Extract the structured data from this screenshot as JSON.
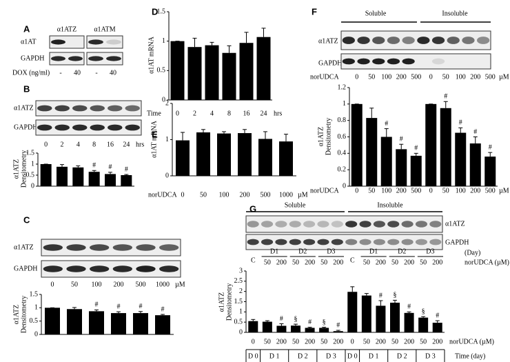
{
  "chart_data": [
    {
      "type": "bar",
      "y_label": [
        "α1ATZ",
        "Densitometry"
      ],
      "categories": [
        "0",
        "2",
        "4",
        "8",
        "16",
        "24"
      ],
      "x_unit": "hrs",
      "values": [
        1.0,
        0.88,
        0.85,
        0.65,
        0.55,
        0.5
      ],
      "errors": [
        0,
        0.1,
        0.07,
        0.06,
        0.08,
        0.03
      ],
      "annotations": [
        null,
        null,
        null,
        "#",
        "#",
        "#"
      ],
      "ylim": [
        0,
        1.5
      ],
      "yticks": [
        0,
        0.5,
        1,
        1.5
      ],
      "color": "#000000"
    },
    {
      "type": "bar",
      "y_label": [
        "α1ATZ",
        "Densitometry"
      ],
      "categories": [
        "0",
        "50",
        "100",
        "200",
        "500",
        "1000"
      ],
      "x_unit": "µM",
      "values": [
        1.0,
        0.95,
        0.87,
        0.8,
        0.8,
        0.72
      ],
      "errors": [
        0,
        0.06,
        0.05,
        0.05,
        0.06,
        0.03
      ],
      "annotations": [
        null,
        null,
        "#",
        "#",
        "#",
        "#"
      ],
      "ylim": [
        0,
        1.5
      ],
      "yticks": [
        0,
        0.5,
        1,
        1.5
      ],
      "color": "#000000"
    },
    {
      "type": "bar",
      "y_label": [
        "α1AT mRNA"
      ],
      "x_label": "Time",
      "categories": [
        "0",
        "2",
        "4",
        "8",
        "16",
        "24"
      ],
      "x_unit": "hrs",
      "values": [
        1.0,
        0.9,
        0.93,
        0.8,
        0.97,
        1.07
      ],
      "errors": [
        0,
        0.15,
        0.05,
        0.12,
        0.18,
        0.15
      ],
      "ylim": [
        0,
        1.5
      ],
      "yticks": [
        0,
        0.5,
        1,
        1.5
      ],
      "color": "#000000"
    },
    {
      "type": "bar",
      "y_label": [
        "α1AT mRNA"
      ],
      "x_label": "norUDCA",
      "categories": [
        "0",
        "50",
        "100",
        "200",
        "500",
        "1000"
      ],
      "x_unit": "µM",
      "values": [
        0.98,
        1.2,
        1.17,
        1.18,
        1.02,
        0.95
      ],
      "errors": [
        0.22,
        0.08,
        0.05,
        0.1,
        0.2,
        0.2
      ],
      "ylim": [
        0,
        2
      ],
      "yticks": [
        0,
        1,
        2
      ],
      "color": "#000000"
    },
    {
      "type": "bar",
      "y_label": [
        "α1ATZ",
        "Densitometry"
      ],
      "x_label": "norUDCA",
      "categories": [
        "0",
        "50",
        "100",
        "200",
        "500",
        "0",
        "50",
        "100",
        "200",
        "500"
      ],
      "x_unit": "µM",
      "values": [
        1.0,
        0.83,
        0.6,
        0.45,
        0.37,
        1.0,
        0.95,
        0.65,
        0.52,
        0.36
      ],
      "errors": [
        0,
        0.12,
        0.1,
        0.06,
        0.03,
        0,
        0.08,
        0.06,
        0.08,
        0.05
      ],
      "annotations": [
        null,
        null,
        "#",
        "#",
        "#",
        null,
        "#",
        "#",
        "#",
        "#"
      ],
      "ylim": [
        0,
        1.2
      ],
      "yticks": [
        0,
        0.2,
        0.4,
        0.6,
        0.8,
        1,
        1.2
      ],
      "color": "#000000"
    },
    {
      "type": "bar",
      "y_label": [
        "α1ATZ",
        "Densitometry"
      ],
      "x_label": "norUDCA (µM)",
      "categories": [
        "0",
        "50",
        "200",
        "50",
        "200",
        "50",
        "200",
        "0",
        "50",
        "200",
        "50",
        "200",
        "50",
        "200"
      ],
      "days": [
        "D 0",
        "D 1",
        "D 2",
        "D 3",
        "D 0",
        "D 1",
        "D 2",
        "D 3"
      ],
      "days_label": "Time (day)",
      "values": [
        0.55,
        0.52,
        0.32,
        0.33,
        0.22,
        0.22,
        0.06,
        1.98,
        1.8,
        1.3,
        1.45,
        0.95,
        0.72,
        0.47
      ],
      "errors": [
        0.08,
        0.05,
        0.1,
        0.07,
        0.03,
        0.03,
        0.04,
        0.25,
        0.1,
        0.25,
        0.12,
        0.05,
        0.05,
        0.1
      ],
      "annotations": [
        null,
        null,
        "#",
        "§",
        "#",
        "§",
        "#",
        null,
        null,
        "#",
        "§",
        "#",
        "§",
        "#"
      ],
      "ylim": [
        0,
        3
      ],
      "yticks": [
        0,
        0.5,
        1,
        1.5,
        2,
        2.5,
        3
      ],
      "color": "#000000"
    }
  ],
  "blots": {
    "A": {
      "letter": "A",
      "columns": [
        "α1ATZ",
        "α1ATM"
      ],
      "rows": [
        "α1AT",
        "GAPDH"
      ],
      "dox_label": "DOX (ng/ml)",
      "dox": [
        "-",
        "40",
        "-",
        "40"
      ]
    },
    "B": {
      "letter": "B",
      "rows": [
        "α1ATZ",
        "GAPDH"
      ]
    },
    "C": {
      "letter": "C",
      "rows": [
        "α1ATZ",
        "GAPDH"
      ]
    },
    "D": {
      "letter": "D"
    },
    "E": {
      "letter": "E"
    },
    "F": {
      "letter": "F",
      "groups": [
        "Soluble",
        "Insoluble"
      ],
      "rows": [
        "α1ATZ",
        "GAPDH"
      ]
    },
    "G": {
      "letter": "G",
      "groups": [
        "Soluble",
        "Insoluble"
      ],
      "rows": [
        "α1ATZ",
        "GAPDH"
      ],
      "day_label": "(Day)",
      "top_groups": [
        "C",
        "D1",
        "D2",
        "D3"
      ],
      "top_doses": [
        "50",
        "200"
      ],
      "top_dose_label": "norUDCA (µM)"
    }
  }
}
